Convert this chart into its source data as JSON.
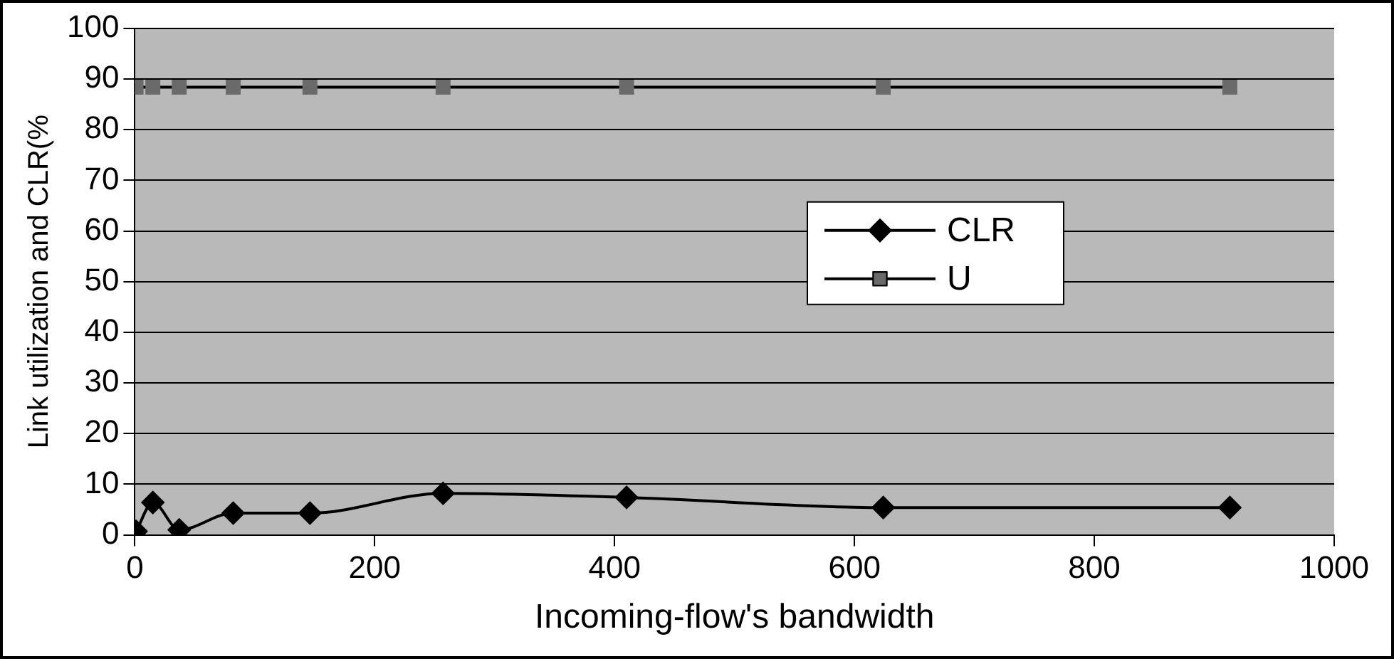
{
  "chart_data": {
    "type": "line",
    "xlabel": "Incoming-flow's bandwidth",
    "ylabel": "Link utilization and CLR(%",
    "xlim": [
      0,
      1000
    ],
    "xticks": [
      0,
      200,
      400,
      600,
      800,
      1000
    ],
    "ylim": [
      0,
      100
    ],
    "yticks": [
      0,
      10,
      20,
      30,
      40,
      50,
      60,
      70,
      80,
      90,
      100
    ],
    "grid": "y",
    "legend": "right",
    "line_style": "solid",
    "series": [
      {
        "name": "CLR",
        "color": "#000000",
        "marker": "diamond",
        "x": [
          1,
          15,
          37,
          82,
          146,
          257,
          410,
          624,
          913
        ],
        "values": [
          0.7,
          6.4,
          1.0,
          4.3,
          4.3,
          8.2,
          7.4,
          5.4,
          5.4
        ]
      },
      {
        "name": "U",
        "color": "#6a6a6a",
        "marker": "square",
        "x": [
          1,
          15,
          37,
          82,
          146,
          257,
          410,
          624,
          913
        ],
        "values": [
          88.4,
          88.4,
          88.4,
          88.4,
          88.4,
          88.4,
          88.4,
          88.4,
          88.4
        ]
      }
    ]
  }
}
